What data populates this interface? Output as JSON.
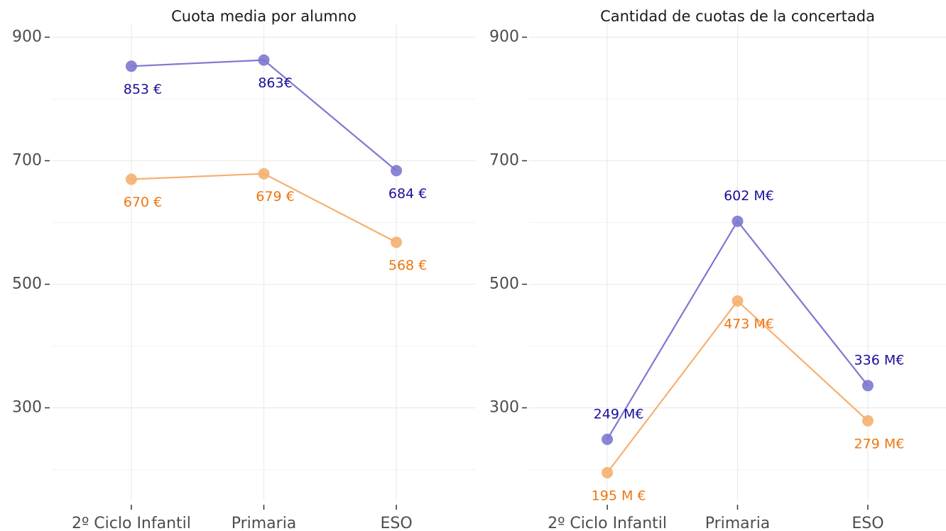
{
  "chart_data": [
    {
      "type": "line",
      "title": "Cuota media por alumno",
      "categories": [
        "2º Ciclo Infantil",
        "Primaria",
        "ESO"
      ],
      "series": [
        {
          "color": "#7d78cf",
          "label_color": "#1b0f9a",
          "label_position": "below",
          "values": [
            853,
            863,
            684
          ],
          "value_labels": [
            "853 €",
            "863€",
            "684 €"
          ]
        },
        {
          "color": "#f5b070",
          "label_color": "#ee7610",
          "label_position": "below",
          "values": [
            670,
            679,
            568
          ],
          "value_labels": [
            "670 €",
            "679 €",
            "568 €"
          ]
        }
      ],
      "ylim": [
        150,
        920
      ],
      "yticks": [
        300,
        500,
        700,
        900
      ],
      "grid": true
    },
    {
      "type": "line",
      "title": "Cantidad de cuotas de la concertada",
      "categories": [
        "2º Ciclo Infantil",
        "Primaria",
        "ESO"
      ],
      "series": [
        {
          "color": "#7d78cf",
          "label_color": "#1b0f9a",
          "label_position": "above",
          "values": [
            249,
            602,
            336
          ],
          "value_labels": [
            "249 M€",
            "602 M€",
            "336 M€"
          ]
        },
        {
          "color": "#f5b070",
          "label_color": "#ee7610",
          "label_position": "below",
          "values": [
            195,
            473,
            279
          ],
          "value_labels": [
            "195 M €",
            "473 M€",
            "279 M€"
          ]
        }
      ],
      "ylim": [
        150,
        920
      ],
      "yticks": [
        300,
        500,
        700,
        900
      ],
      "grid": true
    }
  ]
}
